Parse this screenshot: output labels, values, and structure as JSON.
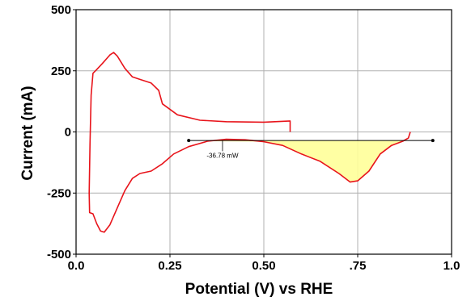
{
  "chart_data": {
    "type": "line",
    "title": "",
    "top_text": "",
    "xlabel": "Potential (V) vs RHE",
    "ylabel": "Current (mA)",
    "xlim": [
      0.0,
      1.0
    ],
    "ylim": [
      -500,
      500
    ],
    "x_ticks": [
      0.0,
      0.25,
      0.5,
      0.75,
      1.0
    ],
    "x_tick_labels": [
      "0.0",
      "0.25",
      "0.50",
      ".75",
      "1.0"
    ],
    "y_ticks": [
      -500,
      -250,
      0,
      250,
      500
    ],
    "y_tick_labels": [
      "-500",
      "-250",
      "0",
      "250",
      "500"
    ],
    "grid": true,
    "colors": {
      "curve": "#e8141b",
      "fill": "#ffff99",
      "baseline": "#000000",
      "grid": "#b0b0b0"
    },
    "series": [
      {
        "points": [
          [
            0.57,
            0
          ],
          [
            0.57,
            45
          ],
          [
            0.5,
            40
          ],
          [
            0.4,
            42
          ],
          [
            0.33,
            48
          ],
          [
            0.27,
            70
          ],
          [
            0.23,
            115
          ],
          [
            0.22,
            170
          ],
          [
            0.2,
            200
          ],
          [
            0.17,
            215
          ],
          [
            0.15,
            225
          ],
          [
            0.13,
            260
          ],
          [
            0.11,
            310
          ],
          [
            0.1,
            325
          ],
          [
            0.09,
            315
          ],
          [
            0.07,
            280
          ],
          [
            0.055,
            255
          ],
          [
            0.045,
            240
          ],
          [
            0.04,
            150
          ],
          [
            0.037,
            -50
          ],
          [
            0.035,
            -250
          ],
          [
            0.036,
            -330
          ],
          [
            0.045,
            -335
          ],
          [
            0.055,
            -375
          ],
          [
            0.065,
            -405
          ],
          [
            0.075,
            -410
          ],
          [
            0.09,
            -380
          ],
          [
            0.11,
            -310
          ],
          [
            0.13,
            -240
          ],
          [
            0.15,
            -190
          ],
          [
            0.17,
            -170
          ],
          [
            0.2,
            -160
          ],
          [
            0.23,
            -130
          ],
          [
            0.26,
            -90
          ],
          [
            0.3,
            -60
          ],
          [
            0.35,
            -38
          ],
          [
            0.4,
            -30
          ],
          [
            0.45,
            -32
          ],
          [
            0.5,
            -40
          ],
          [
            0.55,
            -55
          ],
          [
            0.6,
            -90
          ],
          [
            0.65,
            -120
          ],
          [
            0.7,
            -170
          ],
          [
            0.73,
            -205
          ],
          [
            0.75,
            -200
          ],
          [
            0.78,
            -160
          ],
          [
            0.81,
            -90
          ],
          [
            0.84,
            -55
          ],
          [
            0.87,
            -38
          ],
          [
            0.885,
            -25
          ],
          [
            0.89,
            0
          ]
        ]
      }
    ],
    "shaded_region": {
      "x_from": 0.35,
      "x_to": 0.885,
      "baseline_y": -35
    },
    "baseline_line": {
      "x_from": 0.3,
      "x_to": 0.95,
      "y": -35
    },
    "annotation": {
      "text": "-36.78 mW",
      "anchor": [
        0.39,
        -35
      ],
      "label_at": [
        0.39,
        -105
      ]
    }
  }
}
